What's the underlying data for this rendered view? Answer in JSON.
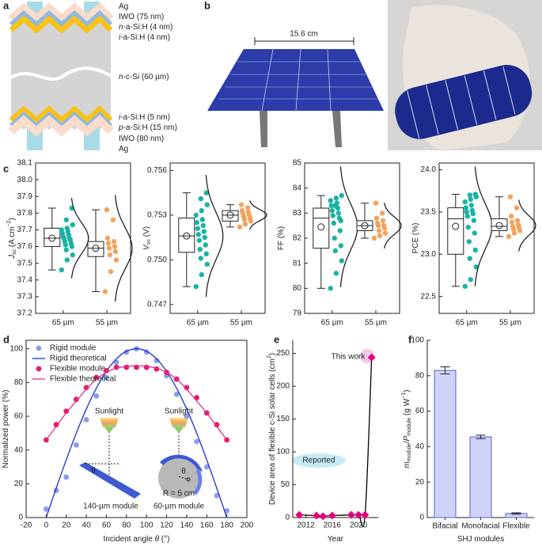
{
  "panel_labels": [
    "a",
    "b",
    "c",
    "d",
    "e",
    "f"
  ],
  "layer_diagram": {
    "layers": [
      {
        "label": [
          {
            "text": "Ag"
          }
        ]
      },
      {
        "label": [
          {
            "text": "IWO (75 nm)"
          }
        ]
      },
      {
        "label": [
          {
            "text": "n",
            "style": "italic"
          },
          {
            "text": "-a-Si:H (4 nm)"
          }
        ]
      },
      {
        "label": [
          {
            "text": "i",
            "style": "italic"
          },
          {
            "text": "-a-Si:H (4 nm)"
          }
        ]
      },
      {
        "label": [
          {
            "text": "n",
            "style": "italic"
          },
          {
            "text": "-c-Si (60 µm)"
          }
        ]
      },
      {
        "label": [
          {
            "text": "i",
            "style": "italic"
          },
          {
            "text": "-a-Si:H (5 nm)"
          }
        ]
      },
      {
        "label": [
          {
            "text": "p",
            "style": "italic"
          },
          {
            "text": "-a-Si:H (15 nm)"
          }
        ]
      },
      {
        "label": [
          {
            "text": "IWO (80 nm)"
          }
        ]
      },
      {
        "label": [
          {
            "text": "Ag"
          }
        ]
      }
    ]
  },
  "photo": {
    "dimension_label": "15.6 cm"
  },
  "chart_data": [
    {
      "type": "box",
      "ylabel": [
        {
          "text": "J",
          "style": "italic"
        },
        {
          "text": "sc",
          "style": "sub"
        },
        {
          "text": " (A cm"
        },
        {
          "text": "−2",
          "style": "sup"
        },
        {
          "text": ")"
        }
      ],
      "categories": [
        "65 µm",
        "55 µm"
      ],
      "ylim": [
        37.2,
        38.1
      ],
      "yticks": [
        37.2,
        37.3,
        37.4,
        37.5,
        37.6,
        37.7,
        37.8,
        37.9,
        {
          "value": 38,
          "label": "38.0"
        },
        38.1
      ],
      "groups": [
        {
          "color": "#19b3a6",
          "whisker_low": 37.46,
          "q1": 37.6,
          "median": 37.65,
          "q3": 37.71,
          "whisker_high": 37.83,
          "mean": 37.65,
          "points": [
            37.46,
            37.52,
            37.55,
            37.58,
            37.6,
            37.61,
            37.62,
            37.63,
            37.64,
            37.65,
            37.65,
            37.66,
            37.67,
            37.68,
            37.69,
            37.7,
            37.71,
            37.73,
            37.76,
            37.83
          ]
        },
        {
          "color": "#f2a35e",
          "whisker_low": 37.33,
          "q1": 37.54,
          "median": 37.59,
          "q3": 37.63,
          "whisker_high": 37.82,
          "mean": 37.59,
          "points": [
            37.33,
            37.45,
            37.52,
            37.55,
            37.57,
            37.59,
            37.6,
            37.62,
            37.63,
            37.65,
            37.76,
            37.82
          ]
        }
      ]
    },
    {
      "type": "box",
      "ylabel": [
        {
          "text": "V",
          "style": "italic"
        },
        {
          "text": "oc",
          "style": "sub"
        },
        {
          "text": " (V)"
        }
      ],
      "categories": [
        "65 µm",
        "55 µm"
      ],
      "ylim": [
        0.7464,
        0.7565
      ],
      "yticks": [
        0.747,
        {
          "value": 0.75,
          "label": "0.750"
        },
        0.753,
        0.756
      ],
      "groups": [
        {
          "color": "#19b3a6",
          "whisker_low": 0.7482,
          "q1": 0.7505,
          "median": 0.7516,
          "q3": 0.7528,
          "whisker_high": 0.7545,
          "mean": 0.7516,
          "points": [
            0.7482,
            0.749,
            0.7497,
            0.7501,
            0.7504,
            0.7507,
            0.751,
            0.7513,
            0.7515,
            0.7517,
            0.7519,
            0.7521,
            0.7523,
            0.7525,
            0.7527,
            0.753,
            0.7533,
            0.7537,
            0.7541,
            0.7545
          ]
        },
        {
          "color": "#f2a35e",
          "whisker_low": 0.7522,
          "q1": 0.7526,
          "median": 0.753,
          "q3": 0.7533,
          "whisker_high": 0.7537,
          "mean": 0.753,
          "points": [
            0.7522,
            0.7524,
            0.7526,
            0.7527,
            0.7528,
            0.7529,
            0.753,
            0.7531,
            0.7532,
            0.7533,
            0.7535,
            0.7537
          ]
        }
      ]
    },
    {
      "type": "box",
      "ylabel": [
        {
          "text": "FF (%)"
        }
      ],
      "categories": [
        "65 µm",
        "55 µm"
      ],
      "ylim": [
        79,
        85
      ],
      "yticks": [
        79,
        80,
        81,
        82,
        83,
        84,
        85
      ],
      "groups": [
        {
          "color": "#19b3a6",
          "whisker_low": 80,
          "q1": 81.6,
          "median": 82.8,
          "q3": 83.2,
          "whisker_high": 83.7,
          "mean": 82.45,
          "points": [
            80,
            80.6,
            81.1,
            81.5,
            81.7,
            82,
            82.3,
            82.6,
            82.8,
            82.9,
            83,
            83.1,
            83.2,
            83.3,
            83.4,
            83.5,
            83.6,
            83.7,
            83.3,
            82.7
          ]
        },
        {
          "color": "#f2a35e",
          "whisker_low": 82,
          "q1": 82.3,
          "median": 82.5,
          "q3": 82.7,
          "whisker_high": 83.4,
          "mean": 82.5,
          "points": [
            82,
            82.1,
            82.2,
            82.3,
            82.4,
            82.5,
            82.5,
            82.6,
            82.7,
            82.8,
            83,
            83.4
          ]
        }
      ]
    },
    {
      "type": "box",
      "ylabel": [
        {
          "text": "PCE (%)"
        }
      ],
      "categories": [
        "65 µm",
        "55 µm"
      ],
      "ylim": [
        22.3,
        24.08
      ],
      "yticks": [
        22.5,
        {
          "value": 23,
          "label": "23.0"
        },
        23.5,
        {
          "value": 24,
          "label": "24.0"
        }
      ],
      "groups": [
        {
          "color": "#19b3a6",
          "whisker_low": 22.62,
          "q1": 23,
          "median": 23.42,
          "q3": 23.55,
          "whisker_high": 23.71,
          "mean": 23.33,
          "points": [
            22.62,
            22.7,
            22.85,
            22.95,
            23.05,
            23.15,
            23.25,
            23.32,
            23.4,
            23.45,
            23.48,
            23.5,
            23.52,
            23.55,
            23.58,
            23.62,
            23.65,
            23.68,
            23.7,
            23.71
          ]
        },
        {
          "color": "#f2a35e",
          "whisker_low": 23.21,
          "q1": 23.28,
          "median": 23.33,
          "q3": 23.42,
          "whisker_high": 23.68,
          "mean": 23.34,
          "points": [
            23.21,
            23.25,
            23.28,
            23.3,
            23.32,
            23.33,
            23.35,
            23.38,
            23.4,
            23.45,
            23.55,
            23.68
          ]
        }
      ]
    },
    {
      "type": "line",
      "xlabel": [
        {
          "text": "Incident angle "
        },
        {
          "text": "θ",
          "style": "italic"
        },
        {
          "text": " (°)"
        }
      ],
      "ylabel": [
        {
          "text": "Normalized power (%)"
        }
      ],
      "x": [
        0,
        10,
        20,
        30,
        40,
        50,
        60,
        70,
        80,
        90,
        100,
        110,
        120,
        130,
        140,
        150,
        160,
        170,
        180
      ],
      "xlim": [
        -20,
        200
      ],
      "xticks": [
        -20,
        0,
        20,
        40,
        60,
        80,
        100,
        120,
        140,
        160,
        180,
        200
      ],
      "ylim": [
        0,
        105
      ],
      "yticks": [
        0,
        20,
        40,
        60,
        80,
        100
      ],
      "legend": "upper left",
      "series": [
        {
          "name": "Rigid module",
          "style": "markers",
          "marker": "circle",
          "color": "#8c9ded",
          "values": [
            5,
            16,
            24,
            43,
            58,
            72,
            83,
            92,
            98,
            100,
            98,
            93,
            84,
            73,
            60,
            45,
            30,
            13,
            4
          ]
        },
        {
          "name": "Rigid theoretical",
          "style": "line",
          "color": "#1f2fd0",
          "values": [
            0,
            17.4,
            34.2,
            50,
            64.3,
            76.6,
            86.6,
            94,
            98.5,
            100,
            98.5,
            94,
            86.6,
            76.6,
            64.3,
            50,
            34.2,
            17.4,
            0
          ]
        },
        {
          "name": "Flexible module",
          "style": "markers",
          "marker": "circle",
          "color": "#e8186a",
          "values": [
            46,
            55,
            63,
            70,
            77,
            83,
            87,
            89,
            89,
            89,
            89,
            88,
            86,
            82,
            77,
            71,
            62,
            55,
            46
          ]
        },
        {
          "name": "Flexible theoretical",
          "style": "line",
          "color": "#e0308c",
          "values": [
            46,
            54,
            62,
            69,
            76,
            82,
            86,
            88.5,
            89.5,
            90,
            89.5,
            88.5,
            86,
            82,
            76,
            69,
            62,
            54,
            46
          ]
        }
      ],
      "annotations": [
        {
          "text": "Sunlight"
        },
        {
          "text": "Sunlight"
        },
        {
          "text": "θ"
        },
        {
          "text": "θ"
        },
        {
          "text": "R = 5 cm"
        },
        {
          "text": "140-µm module"
        },
        {
          "text": "60-µm module"
        }
      ]
    },
    {
      "type": "line",
      "xlabel": [
        {
          "text": "Year"
        }
      ],
      "ylabel": [
        {
          "text": "Device area of flexible c-Si solar cells (cm"
        },
        {
          "text": "2",
          "style": "sup"
        },
        {
          "text": ")"
        }
      ],
      "x": [
        2011,
        2013.6,
        2014.6,
        2016,
        2018.9,
        2020,
        2021,
        2022
      ],
      "xlim": [
        2010,
        2023
      ],
      "xticks": [
        2012,
        2016,
        2020
      ],
      "ylim": [
        0,
        270
      ],
      "yticks": [
        0,
        50,
        100,
        150,
        200,
        250
      ],
      "series": [
        {
          "style": "markers+line",
          "marker": "diamond",
          "color": "#e6007e",
          "line_color": "#000000",
          "values": [
            4,
            3,
            2,
            3,
            4,
            4,
            4,
            244
          ]
        }
      ],
      "annotations": [
        {
          "text": "This work",
          "color": "#d62fc8"
        },
        {
          "text": "Reported"
        }
      ]
    },
    {
      "type": "bar",
      "xlabel": [
        {
          "text": "SHJ modules"
        }
      ],
      "ylabel": [
        {
          "text": "m",
          "style": "italic"
        },
        {
          "text": "module",
          "style": "sub"
        },
        {
          "text": "/"
        },
        {
          "text": "P",
          "style": "italic"
        },
        {
          "text": "module",
          "style": "sub"
        },
        {
          "text": " (g W"
        },
        {
          "text": "−1",
          "style": "sup"
        },
        {
          "text": ")"
        }
      ],
      "categories": [
        "Bifacial",
        "Monofacial",
        "Flexible"
      ],
      "values": [
        83,
        45.5,
        2.3
      ],
      "errors": [
        2,
        1,
        0.4
      ],
      "color": "#cfd3f7",
      "edge_color": "#5a63c8",
      "ylim": [
        0,
        100
      ],
      "yticks": [
        0,
        20,
        40,
        60,
        80,
        100
      ]
    }
  ]
}
